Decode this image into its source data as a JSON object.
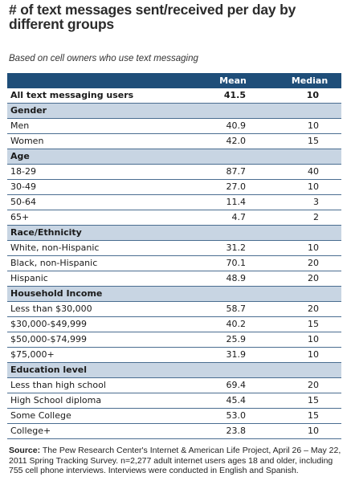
{
  "title": "# of text messages sent/received per day by different groups",
  "subtitle": "Based on cell owners who use text messaging",
  "chart_data": {
    "type": "table",
    "columns": [
      "",
      "Mean",
      "Median"
    ],
    "rows": [
      {
        "kind": "total",
        "label": "All text messaging users",
        "mean": "41.5",
        "median": "10"
      },
      {
        "kind": "section",
        "label": "Gender"
      },
      {
        "kind": "row",
        "label": "Men",
        "mean": "40.9",
        "median": "10"
      },
      {
        "kind": "row",
        "label": "Women",
        "mean": "42.0",
        "median": "15"
      },
      {
        "kind": "section",
        "label": "Age"
      },
      {
        "kind": "row",
        "label": "18-29",
        "mean": "87.7",
        "median": "40"
      },
      {
        "kind": "row",
        "label": "30-49",
        "mean": "27.0",
        "median": "10"
      },
      {
        "kind": "row",
        "label": "50-64",
        "mean": "11.4",
        "median": "3"
      },
      {
        "kind": "row",
        "label": "65+",
        "mean": "4.7",
        "median": "2"
      },
      {
        "kind": "section",
        "label": "Race/Ethnicity"
      },
      {
        "kind": "row",
        "label": "White, non-Hispanic",
        "mean": "31.2",
        "median": "10"
      },
      {
        "kind": "row",
        "label": "Black, non-Hispanic",
        "mean": "70.1",
        "median": "20"
      },
      {
        "kind": "row",
        "label": "Hispanic",
        "mean": "48.9",
        "median": "20"
      },
      {
        "kind": "section",
        "label": "Household Income"
      },
      {
        "kind": "row",
        "label": "Less than $30,000",
        "mean": "58.7",
        "median": "20"
      },
      {
        "kind": "row",
        "label": "$30,000-$49,999",
        "mean": "40.2",
        "median": "15"
      },
      {
        "kind": "row",
        "label": "$50,000-$74,999",
        "mean": "25.9",
        "median": "10"
      },
      {
        "kind": "row",
        "label": "$75,000+",
        "mean": "31.9",
        "median": "10"
      },
      {
        "kind": "section",
        "label": "Education level"
      },
      {
        "kind": "row",
        "label": "Less than high school",
        "mean": "69.4",
        "median": "20"
      },
      {
        "kind": "row",
        "label": "High School diploma",
        "mean": "45.4",
        "median": "15"
      },
      {
        "kind": "row",
        "label": "Some College",
        "mean": "53.0",
        "median": "15"
      },
      {
        "kind": "row",
        "label": "College+",
        "mean": "23.8",
        "median": "10"
      }
    ]
  },
  "source": {
    "label": "Source:",
    "text": " The Pew Research Center's Internet & American Life Project, April 26 – May 22, 2011 Spring Tracking Survey. n=2,277 adult internet users ages 18 and older, including 755 cell phone interviews. Interviews were conducted in English and Spanish."
  },
  "colors": {
    "header": "#1f4e79",
    "section": "#c8d5e3",
    "rule": "#4a6d90"
  }
}
